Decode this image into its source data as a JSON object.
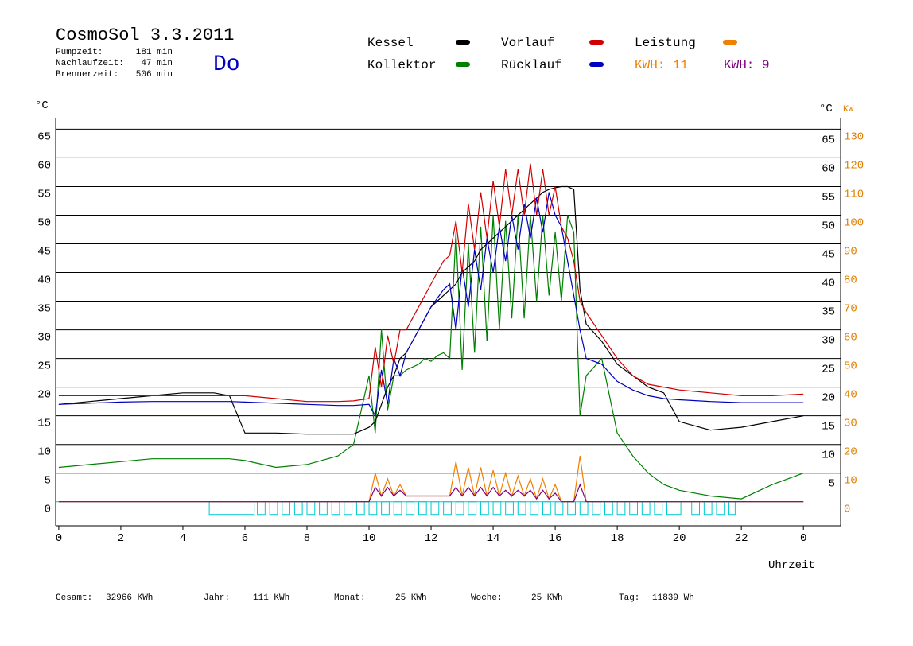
{
  "header": {
    "title": "CosmoSol 3.3.2011",
    "day": "Do",
    "stats": [
      [
        "Pumpzeit:",
        "181 min"
      ],
      [
        "Nachlaufzeit:",
        "47 min"
      ],
      [
        "Brennerzeit:",
        "506 min"
      ]
    ]
  },
  "footer": [
    [
      "Gesamt:",
      "32966 KWh"
    ],
    [
      "Jahr:",
      "111 KWh"
    ],
    [
      "Monat:",
      "25 KWh"
    ],
    [
      "Woche:",
      "25 KWh"
    ],
    [
      "Tag:",
      "11839 Wh"
    ]
  ],
  "chart_data": {
    "type": "line",
    "y_unit_left": "°C",
    "y_unit_right": "°C",
    "y2_unit": "KW",
    "x_label": "Uhrzeit",
    "kwh_labels": [
      {
        "text": "KWH: 11",
        "color": "#f08000"
      },
      {
        "text": "KWH: 9",
        "color": "#800080"
      }
    ],
    "xlim": [
      -0.1,
      25.2
    ],
    "ylim": [
      -4.2,
      67
    ],
    "y2lim": [
      -8.4,
      134
    ],
    "xticks": [
      0,
      2,
      4,
      6,
      8,
      10,
      12,
      14,
      16,
      18,
      20,
      22,
      {
        "value": 24,
        "label": "0"
      }
    ],
    "yticks": [
      0,
      5,
      10,
      15,
      20,
      25,
      30,
      35,
      40,
      45,
      50,
      55,
      60,
      65
    ],
    "yticks_right": [
      5,
      10,
      15,
      20,
      25,
      30,
      35,
      40,
      45,
      50,
      55,
      60,
      65
    ],
    "y2ticks": [
      0,
      10,
      20,
      30,
      40,
      50,
      60,
      70,
      80,
      90,
      100,
      110,
      120,
      130
    ],
    "grid": true,
    "x": [
      0,
      1,
      2,
      3,
      4,
      5,
      5.5,
      6,
      7,
      8,
      9,
      9.5,
      10,
      10.2,
      10.4,
      10.6,
      10.8,
      11,
      11.2,
      11.4,
      11.6,
      11.8,
      12,
      12.2,
      12.4,
      12.6,
      12.8,
      13,
      13.2,
      13.4,
      13.6,
      13.8,
      14,
      14.2,
      14.4,
      14.6,
      14.8,
      15,
      15.2,
      15.4,
      15.6,
      15.8,
      16,
      16.2,
      16.4,
      16.6,
      16.8,
      17,
      17.5,
      18,
      18.5,
      19,
      19.5,
      20,
      21,
      22,
      23,
      24
    ],
    "series": [
      {
        "name": "Kessel",
        "color": "#000000",
        "values": [
          17,
          17.5,
          18,
          18.5,
          19,
          19,
          18.5,
          12,
          12,
          11.8,
          11.8,
          11.8,
          13,
          14,
          17,
          20,
          22,
          25,
          26,
          28,
          30,
          32,
          34,
          35,
          36,
          37,
          38,
          40,
          41,
          42,
          44,
          45,
          46,
          47,
          48,
          49,
          50,
          51,
          52,
          53,
          54,
          54.5,
          54.8,
          55,
          55,
          54.5,
          37,
          31,
          28,
          24,
          22,
          20,
          19,
          14,
          12.5,
          13,
          14,
          15
        ]
      },
      {
        "name": "Kollektor",
        "color": "#008000",
        "values": [
          6,
          6.5,
          7,
          7.5,
          7.5,
          7.5,
          7.5,
          7.2,
          6,
          6.5,
          8,
          10,
          22,
          12,
          30,
          16,
          22,
          22,
          23,
          23.5,
          24,
          25,
          24.5,
          25.5,
          26,
          25,
          47,
          23,
          45,
          26,
          48,
          28,
          50,
          30,
          49,
          32,
          50,
          32,
          50,
          35,
          50,
          36,
          47,
          35,
          50,
          47,
          15,
          22,
          25,
          12,
          8,
          5,
          3,
          2,
          1,
          0.5,
          3,
          5
        ]
      },
      {
        "name": "Vorlauf",
        "color": "#d00000",
        "values": [
          18.5,
          18.5,
          18.5,
          18.5,
          18.5,
          18.5,
          18.5,
          18.5,
          18,
          17.5,
          17.5,
          17.6,
          18,
          27,
          20,
          29,
          24,
          30,
          30,
          32,
          34,
          36,
          38,
          40,
          42,
          43,
          49,
          40,
          52,
          44,
          54,
          46,
          56,
          48,
          58,
          50,
          58,
          50,
          59,
          50,
          58,
          50,
          55,
          48,
          46,
          42,
          35,
          33,
          29,
          25,
          22,
          20.5,
          20,
          19.5,
          19,
          18.5,
          18.5,
          18.8
        ]
      },
      {
        "name": "Rücklauf",
        "color": "#0000c0",
        "values": [
          17,
          17.2,
          17.4,
          17.5,
          17.5,
          17.5,
          17.5,
          17.4,
          17.2,
          17,
          16.8,
          16.8,
          17,
          15,
          23,
          17,
          25,
          22,
          26,
          28,
          30,
          32,
          34,
          35.5,
          37,
          38,
          30,
          41,
          34,
          44,
          37,
          46,
          40,
          48,
          42,
          50,
          44,
          52,
          46,
          53,
          47,
          54,
          50,
          48,
          42,
          36,
          30,
          25,
          24,
          21,
          19.5,
          18.5,
          18,
          17.8,
          17.5,
          17.3,
          17.3,
          17.3
        ]
      },
      {
        "name": "Leistung",
        "color": "#f08000",
        "axis": "y2",
        "values": [
          0,
          0,
          0,
          0,
          0,
          0,
          0,
          0,
          0,
          0,
          0,
          0,
          0,
          10,
          2,
          8,
          2,
          6,
          2,
          2,
          2,
          2,
          2,
          2,
          2,
          2,
          14,
          2,
          12,
          2,
          12,
          2,
          11,
          2,
          10,
          2,
          9,
          2,
          8,
          1,
          8,
          1,
          6,
          0,
          0,
          0,
          16,
          0,
          0,
          0,
          0,
          0,
          0,
          0,
          0,
          0,
          0,
          0
        ]
      },
      {
        "color": "#800080",
        "axis": "y2",
        "values": [
          0,
          0,
          0,
          0,
          0,
          0,
          0,
          0,
          0,
          0,
          0,
          0,
          0,
          5,
          2,
          5,
          2,
          4,
          2,
          2,
          2,
          2,
          2,
          2,
          2,
          2,
          5,
          2,
          5,
          2,
          5,
          2,
          5,
          2,
          4,
          2,
          4,
          2,
          4,
          1,
          4,
          1,
          3,
          0,
          0,
          0,
          6,
          0,
          0,
          0,
          0,
          0,
          0,
          0,
          0,
          0,
          0,
          0
        ]
      }
    ],
    "pump_color": "#00c8d0",
    "pump_intervals": [
      [
        4.85,
        6.3
      ],
      [
        6.4,
        6.65
      ],
      [
        6.8,
        7.05
      ],
      [
        7.2,
        7.45
      ],
      [
        7.6,
        7.85
      ],
      [
        8,
        8.25
      ],
      [
        8.4,
        8.65
      ],
      [
        8.8,
        9.05
      ],
      [
        9.2,
        9.45
      ],
      [
        9.6,
        9.85
      ],
      [
        10,
        10.25
      ],
      [
        10.4,
        10.65
      ],
      [
        10.8,
        11.05
      ],
      [
        11.2,
        11.45
      ],
      [
        11.6,
        11.85
      ],
      [
        12,
        12.25
      ],
      [
        12.4,
        12.65
      ],
      [
        12.8,
        13.05
      ],
      [
        13.2,
        13.45
      ],
      [
        13.6,
        13.85
      ],
      [
        14,
        14.25
      ],
      [
        14.4,
        14.65
      ],
      [
        14.8,
        15.05
      ],
      [
        15.2,
        15.45
      ],
      [
        15.6,
        15.85
      ],
      [
        16,
        16.25
      ],
      [
        16.4,
        16.65
      ],
      [
        16.8,
        17.05
      ],
      [
        17.2,
        17.45
      ],
      [
        17.6,
        17.85
      ],
      [
        18,
        18.25
      ],
      [
        18.4,
        18.65
      ],
      [
        18.8,
        19.05
      ],
      [
        19.2,
        19.45
      ],
      [
        19.6,
        20.05
      ],
      [
        20.4,
        20.65
      ],
      [
        20.8,
        21.05
      ],
      [
        21.2,
        21.45
      ],
      [
        21.6,
        21.8
      ]
    ]
  }
}
